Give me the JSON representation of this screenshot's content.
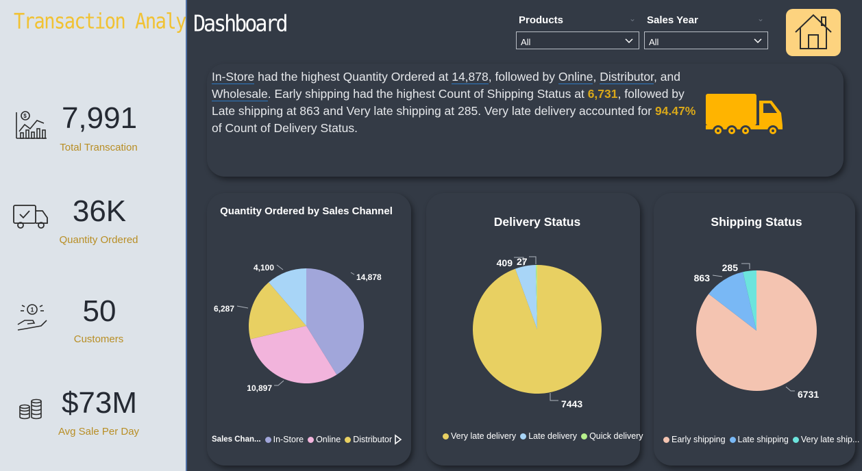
{
  "sidebar": {
    "app_title": "Transaction Analysis",
    "kpis": [
      {
        "value": "7,991",
        "label": "Total Transcation",
        "icon": "chart-analytics-icon"
      },
      {
        "value": "36K",
        "label": "Quantity Ordered",
        "icon": "delivery-truck-icon"
      },
      {
        "value": "50",
        "label": "Customers",
        "icon": "hand-coin-icon"
      },
      {
        "value": "$73M",
        "label": "Avg Sale Per Day",
        "icon": "coin-stack-icon"
      }
    ]
  },
  "header": {
    "title": "Dashboard",
    "products_label": "Products",
    "products_value": "All",
    "sales_year_label": "Sales Year",
    "sales_year_value": "All",
    "home_icon": "home-icon"
  },
  "narrative": {
    "s1": "In-Store",
    "s2": " had the highest Quantity Ordered at ",
    "s3": "14,878",
    "s4": ", followed by ",
    "s5": "Online",
    "s6": ", ",
    "s7": "Distributor",
    "s8": ", and ",
    "s9": "Wholesale",
    "s10": ". Early shipping had the highest Count of Shipping Status at ",
    "s11": "6,731",
    "s12": ", followed by Late shipping at 863 and Very late shipping at 285. Very late delivery accounted for ",
    "s13": "94.47%",
    "s14": " of Count of Delivery Status.",
    "icon": "truck-icon",
    "truck_color": "#ffb400"
  },
  "colors": {
    "accent_gold": "#d9a81a",
    "background": "#333a45",
    "sidebar": "#dde3e9"
  },
  "chart_data": [
    {
      "type": "pie",
      "title": "Quantity Ordered by Sales Channel",
      "categories": [
        "In-Store",
        "Online",
        "Distributor",
        "Wholesale"
      ],
      "values": [
        14878,
        10897,
        6287,
        4100
      ],
      "data_labels": [
        "14,878",
        "10,897",
        "6,287",
        "4,100"
      ],
      "colors": [
        "#a1a6da",
        "#f2b4dc",
        "#e8d062",
        "#a8d5f7"
      ],
      "legend": {
        "title": "Sales Chan...",
        "items": [
          "In-Store",
          "Online",
          "Distributor"
        ],
        "position": "bottom"
      }
    },
    {
      "type": "pie",
      "title": "Delivery Status",
      "categories": [
        "Very late delivery",
        "Late delivery",
        "Quick delivery"
      ],
      "values": [
        7443,
        409,
        27
      ],
      "data_labels": [
        "7443",
        "409",
        "27"
      ],
      "colors": [
        "#e8d062",
        "#a8d5f7",
        "#b7f08c"
      ],
      "legend": {
        "items": [
          "Very late delivery",
          "Late delivery",
          "Quick delivery"
        ],
        "position": "bottom"
      }
    },
    {
      "type": "pie",
      "title": "Shipping Status",
      "categories": [
        "Early shipping",
        "Late shipping",
        "Very late shipping"
      ],
      "values": [
        6731,
        863,
        285
      ],
      "data_labels": [
        "6731",
        "863",
        "285"
      ],
      "colors": [
        "#f4c4b1",
        "#79b8f5",
        "#6ce4dd"
      ],
      "legend": {
        "items": [
          "Early shipping",
          "Late shipping",
          "Very late ship..."
        ],
        "position": "bottom"
      }
    }
  ]
}
